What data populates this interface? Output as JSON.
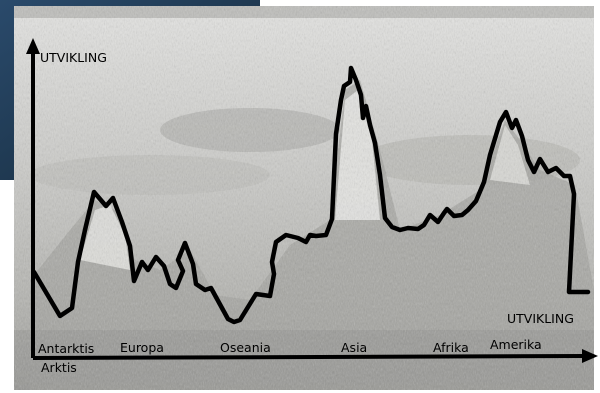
{
  "axes": {
    "y_label": "UTVIKLING",
    "x_label": "UTVIKLING"
  },
  "regions": [
    "Antarktis",
    "Arktis",
    "Europa",
    "Oseania",
    "Asia",
    "Afrika",
    "Amerika"
  ],
  "colors": {
    "line": "#000000",
    "backdrop_blue": "#1c3550",
    "engraving_light": "#dadad8",
    "engraving_dark": "#8e8e8e"
  }
}
